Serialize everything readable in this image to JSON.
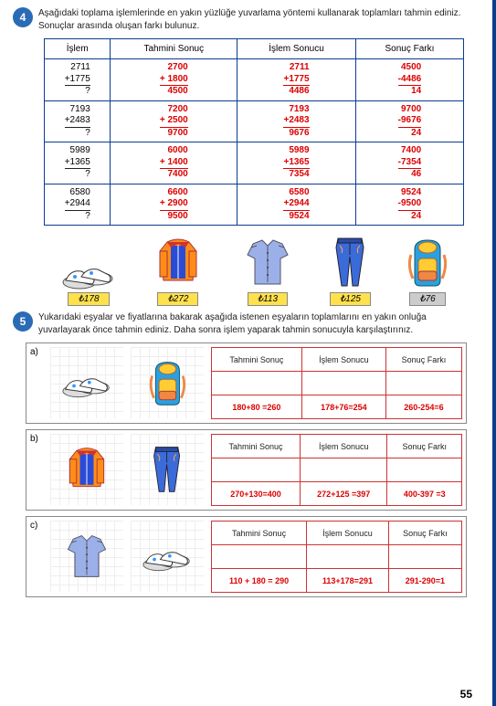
{
  "q4": {
    "num": "4",
    "text": "Aşağıdaki toplama işlemlerinde en yakın yüzlüğe yuvarlama yöntemi kullanarak toplamları tahmin ediniz. Sonuçlar arasında oluşan farkı bulunuz.",
    "headers": [
      "İşlem",
      "Tahmini Sonuç",
      "İşlem Sonucu",
      "Sonuç Farkı"
    ],
    "rows": [
      {
        "a": "2711",
        "b": "1775",
        "ea": "2700",
        "eb": "1800",
        "es": "4500",
        "ra": "2711",
        "rb": "1775",
        "rs": "4486",
        "da": "4500",
        "db": "4486",
        "ds": "14"
      },
      {
        "a": "7193",
        "b": "2483",
        "ea": "7200",
        "eb": "2500",
        "es": "9700",
        "ra": "7193",
        "rb": "2483",
        "rs": "9676",
        "da": "9700",
        "db": "9676",
        "ds": "24"
      },
      {
        "a": "5989",
        "b": "1365",
        "ea": "6000",
        "eb": "1400",
        "es": "7400",
        "ra": "5989",
        "rb": "1365",
        "rs": "7354",
        "da": "7400",
        "db": "7354",
        "ds": "46"
      },
      {
        "a": "6580",
        "b": "2944",
        "ea": "6600",
        "eb": "2900",
        "es": "9500",
        "ra": "6580",
        "rb": "2944",
        "rs": "9524",
        "da": "9524",
        "db": "9500",
        "ds": "24"
      }
    ]
  },
  "items": [
    {
      "name": "shoes",
      "price": "₺178"
    },
    {
      "name": "jacket",
      "price": "₺272"
    },
    {
      "name": "shirt",
      "price": "₺113"
    },
    {
      "name": "jeans",
      "price": "₺125"
    },
    {
      "name": "backpack",
      "price": "₺76"
    }
  ],
  "q5": {
    "num": "5",
    "text": "Yukarıdaki eşyalar ve fiyatlarına bakarak aşağıda istenen eşyaların toplamlarını en yakın onluğa yuvarlayarak önce tahmin ediniz. Daha sonra işlem yaparak tahmin sonucuyla karşılaştırınız.",
    "headers": [
      "Tahmini Sonuç",
      "İşlem Sonucu",
      "Sonuç Farkı"
    ],
    "subs": [
      {
        "lbl": "a)",
        "img1": "shoes",
        "img2": "backpack",
        "est": "180+80 =260",
        "act": "178+76=254",
        "diff": "260-254=6"
      },
      {
        "lbl": "b)",
        "img1": "jacket",
        "img2": "jeans",
        "est": "270+130=400",
        "act": "272+125 =397",
        "diff": "400-397 =3"
      },
      {
        "lbl": "c)",
        "img1": "shirt",
        "img2": "shoes",
        "est": "110 + 180 = 290",
        "act": "113+178=291",
        "diff": "291-290=1"
      }
    ]
  },
  "pagenum": "55"
}
